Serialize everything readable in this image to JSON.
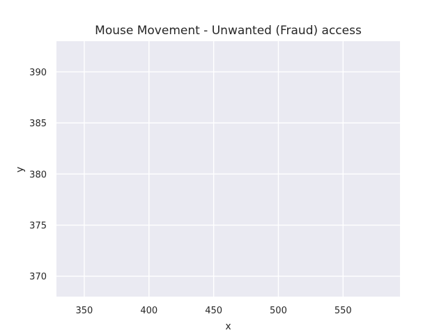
{
  "chart_data": {
    "type": "line",
    "title": "Mouse Movement - Unwanted (Fraud) access",
    "xlabel": "x",
    "ylabel": "y",
    "xlim": [
      328.5,
      594
    ],
    "ylim": [
      368,
      393
    ],
    "xticks": [
      350,
      400,
      450,
      500,
      550
    ],
    "yticks": [
      370,
      375,
      380,
      385,
      390
    ],
    "xtick_labels": [
      "350",
      "400",
      "450",
      "500",
      "550"
    ],
    "ytick_labels": [
      "370",
      "375",
      "380",
      "385",
      "390"
    ],
    "series": [],
    "grid": true,
    "style": {
      "plot_background": "#eaeaf2",
      "grid_color": "#ffffff",
      "text_color": "#262626"
    }
  }
}
